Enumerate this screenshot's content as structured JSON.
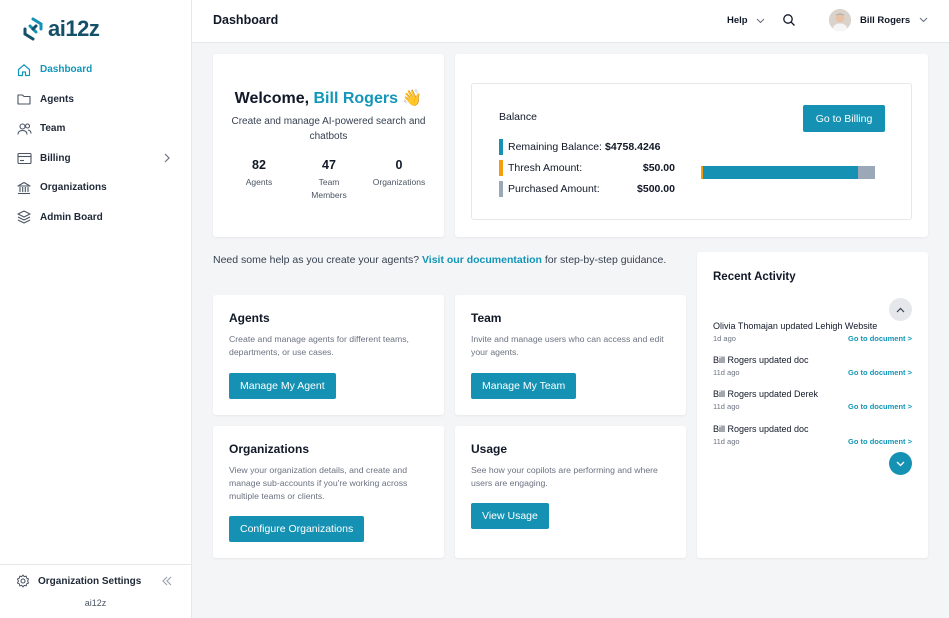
{
  "brand": {
    "name": "ai12z",
    "color": "#14506a"
  },
  "sidebar": {
    "items": [
      {
        "label": "Dashboard",
        "icon": "home-icon",
        "active": true
      },
      {
        "label": "Agents",
        "icon": "folder-icon"
      },
      {
        "label": "Team",
        "icon": "users-icon"
      },
      {
        "label": "Billing",
        "icon": "billing-icon",
        "has_submenu": true
      },
      {
        "label": "Organizations",
        "icon": "building-icon"
      },
      {
        "label": "Admin Board",
        "icon": "layers-icon"
      }
    ],
    "footer": {
      "settings_label": "Organization Settings",
      "brand": "ai12z"
    }
  },
  "header": {
    "title": "Dashboard",
    "help_label": "Help",
    "user_name": "Bill Rogers"
  },
  "welcome": {
    "greeting": "Welcome,",
    "name": "Bill Rogers",
    "emoji": "👋",
    "subtitle": "Create and manage AI-powered search and chatbots",
    "stats": [
      {
        "value": "82",
        "label": "Agents"
      },
      {
        "value": "47",
        "label": "Team Members"
      },
      {
        "value": "0",
        "label": "Organizations"
      }
    ]
  },
  "balance": {
    "title": "Balance",
    "button_label": "Go to Billing",
    "rows": [
      {
        "label": "Remaining Balance:",
        "value": "$4758.4246",
        "color": "#1592b3"
      },
      {
        "label": "Thresh Amount:",
        "value": "$50.00",
        "color": "#f59e0b"
      },
      {
        "label": "Purchased Amount:",
        "value": "$500.00",
        "color": "#9aa8b8"
      }
    ],
    "remaining_fraction": 0.9
  },
  "help": {
    "prefix": "Need some help as you create your agents?",
    "link": "Visit our documentation",
    "suffix": "for step-by-step guidance."
  },
  "features": {
    "agents": {
      "title": "Agents",
      "desc": "Create and manage agents for different teams, departments, or use cases.",
      "button": "Manage My Agent"
    },
    "team": {
      "title": "Team",
      "desc": "Invite and manage users who can access and edit your agents.",
      "button": "Manage My Team"
    },
    "organizations": {
      "title": "Organizations",
      "desc": "View your organization details, and create and manage sub-accounts if you're working across multiple teams or clients.",
      "button": "Configure Organizations"
    },
    "usage": {
      "title": "Usage",
      "desc": "See how your copilots are performing and where users are engaging.",
      "button": "View Usage"
    }
  },
  "activity": {
    "title": "Recent Activity",
    "link_label": "Go to document >",
    "items": [
      {
        "text": "Olivia Thomajan updated Lehigh Website",
        "ago": "1d ago"
      },
      {
        "text": "Bill Rogers updated doc",
        "ago": "11d ago"
      },
      {
        "text": "Bill Rogers updated Derek",
        "ago": "11d ago"
      },
      {
        "text": "Bill Rogers updated doc",
        "ago": "11d ago"
      }
    ]
  }
}
